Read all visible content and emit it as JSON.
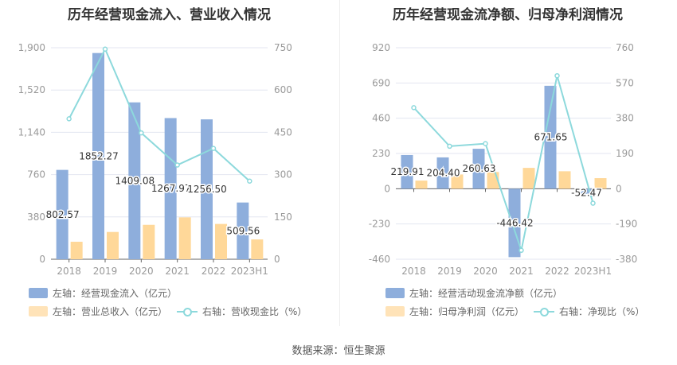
{
  "colors": {
    "inflow": "#8eaedc",
    "revenue": "#ffd899",
    "ratio": "#8dd9dc"
  },
  "footer": "数据来源：恒生聚源",
  "chart_data": [
    {
      "type": "bar+line",
      "title": "历年经营现金流入、营业收入情况",
      "categories": [
        "2018",
        "2019",
        "2020",
        "2021",
        "2022",
        "2023H1"
      ],
      "left_axis": {
        "ticks": [
          "0",
          "380",
          "760",
          "1,140",
          "1,520",
          "1,900"
        ],
        "range": [
          0,
          1900
        ]
      },
      "right_axis": {
        "ticks": [
          "0",
          "150",
          "300",
          "450",
          "600",
          "750"
        ],
        "range": [
          0,
          750
        ]
      },
      "series": [
        {
          "name": "左轴：经营现金流入（亿元）",
          "kind": "bar",
          "axis": "left",
          "values": [
            802.57,
            1852.27,
            1409.08,
            1267.97,
            1256.5,
            509.56
          ],
          "labels": [
            "802.57",
            "1852.27",
            "1409.08",
            "1267.97",
            "1256.50",
            "509.56"
          ]
        },
        {
          "name": "左轴：营业总收入（亿元）",
          "kind": "bar",
          "axis": "left",
          "values": [
            157,
            245,
            309,
            376,
            317,
            178
          ]
        },
        {
          "name": "右轴：营收现金比（%）",
          "kind": "line",
          "axis": "right",
          "values": [
            498,
            745,
            448,
            334,
            393,
            277
          ]
        }
      ],
      "grid": true,
      "legend": "bottom"
    },
    {
      "type": "bar+line",
      "title": "历年经营现金流净额、归母净利润情况",
      "categories": [
        "2018",
        "2019",
        "2020",
        "2021",
        "2022",
        "2023H1"
      ],
      "left_axis": {
        "ticks": [
          "-460",
          "-230",
          "0",
          "230",
          "460",
          "690",
          "920"
        ],
        "range": [
          -460,
          920
        ]
      },
      "right_axis": {
        "ticks": [
          "-380",
          "-190",
          "0",
          "190",
          "380",
          "570",
          "760"
        ],
        "range": [
          -380,
          760
        ]
      },
      "series": [
        {
          "name": "左轴：经营活动现金流净额（亿元）",
          "kind": "bar",
          "axis": "left",
          "values": [
            219.91,
            204.4,
            260.63,
            -446.42,
            671.65,
            -52.47
          ],
          "labels": [
            "219.91",
            "204.40",
            "260.63",
            "-446.42",
            "671.65",
            "-52.47"
          ]
        },
        {
          "name": "左轴：归母净利润（亿元）",
          "kind": "bar",
          "axis": "left",
          "values": [
            53,
            93,
            109,
            136,
            114,
            69
          ]
        },
        {
          "name": "右轴：净现比（%）",
          "kind": "line",
          "axis": "right",
          "values": [
            437,
            229,
            243,
            -332,
            609,
            -78
          ]
        }
      ],
      "grid": true,
      "legend": "bottom"
    }
  ]
}
